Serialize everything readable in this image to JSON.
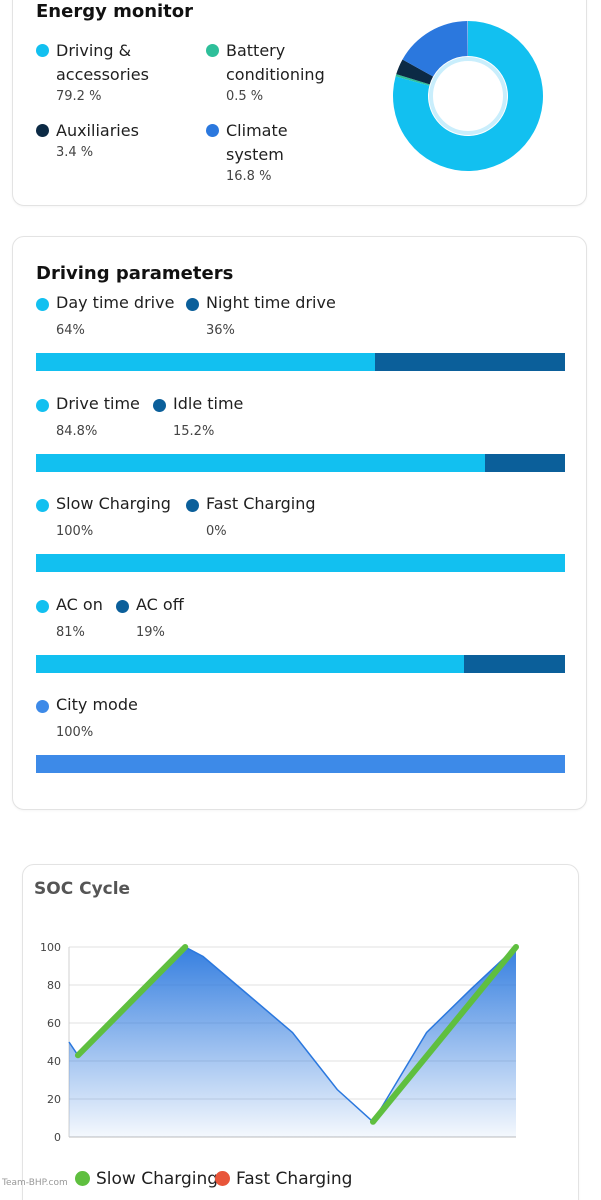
{
  "energy_monitor": {
    "title": "Energy monitor",
    "items": [
      {
        "label_lines": [
          "Driving &",
          "accessories"
        ],
        "value": "79.2 %",
        "color": "#12c0f0",
        "fraction": 0.792
      },
      {
        "label_lines": [
          "Battery",
          "conditioning"
        ],
        "value": "0.5 %",
        "color": "#2ebf9a",
        "fraction": 0.005
      },
      {
        "label_lines": [
          "Auxiliaries"
        ],
        "value": "3.4 %",
        "color": "#0c2a45",
        "fraction": 0.034
      },
      {
        "label_lines": [
          "Climate",
          "system"
        ],
        "value": "16.8 %",
        "color": "#2b78de",
        "fraction": 0.168
      }
    ]
  },
  "driving_parameters": {
    "title": "Driving parameters",
    "rows": [
      {
        "items": [
          {
            "label": "Day time drive",
            "value": "64%",
            "color": "#12c0f0",
            "fraction": 0.64
          },
          {
            "label": "Night time drive",
            "value": "36%",
            "color": "#0b5f9a",
            "fraction": 0.36
          }
        ]
      },
      {
        "items": [
          {
            "label": "Drive time",
            "value": "84.8%",
            "color": "#12c0f0",
            "fraction": 0.848
          },
          {
            "label": "Idle time",
            "value": "15.2%",
            "color": "#0b5f9a",
            "fraction": 0.152
          }
        ]
      },
      {
        "items": [
          {
            "label": "Slow Charging",
            "value": "100%",
            "color": "#12c0f0",
            "fraction": 1.0
          },
          {
            "label": "Fast Charging",
            "value": "0%",
            "color": "#0b5f9a",
            "fraction": 0.0
          }
        ]
      },
      {
        "items": [
          {
            "label": "AC on",
            "value": "81%",
            "color": "#12c0f0",
            "fraction": 0.81
          },
          {
            "label": "AC off",
            "value": "19%",
            "color": "#0b5f9a",
            "fraction": 0.19
          }
        ]
      },
      {
        "items": [
          {
            "label": "City mode",
            "value": "100%",
            "color": "#3d8ae8",
            "fraction": 1.0
          }
        ]
      }
    ]
  },
  "soc_cycle": {
    "title": "SOC Cycle",
    "legend": [
      {
        "label": "Slow Charging",
        "color": "#5fbf3f"
      },
      {
        "label": "Fast Charging",
        "color": "#e8553a"
      }
    ]
  },
  "chart_data": {
    "type": "area",
    "title": "SOC Cycle",
    "xlabel": "",
    "ylabel": "",
    "ylim": [
      0,
      100
    ],
    "yticks": [
      0,
      20,
      40,
      60,
      80,
      100
    ],
    "grid": true,
    "legend_position": "bottom",
    "x": [
      0,
      0.02,
      0.26,
      0.3,
      0.4,
      0.5,
      0.55,
      0.6,
      0.68,
      0.8,
      0.9,
      1.0
    ],
    "series": [
      {
        "name": "SOC",
        "color": "#2b78de",
        "values": [
          50,
          43,
          100,
          95,
          75,
          55,
          40,
          25,
          8,
          55,
          78,
          100
        ]
      },
      {
        "name": "Slow Charging",
        "color": "#5fbf3f",
        "segments": [
          {
            "x": [
              0.02,
              0.26
            ],
            "values": [
              43,
              100
            ]
          },
          {
            "x": [
              0.68,
              1.0
            ],
            "values": [
              8,
              100
            ]
          }
        ]
      }
    ]
  },
  "watermark": "Team-BHP.com"
}
